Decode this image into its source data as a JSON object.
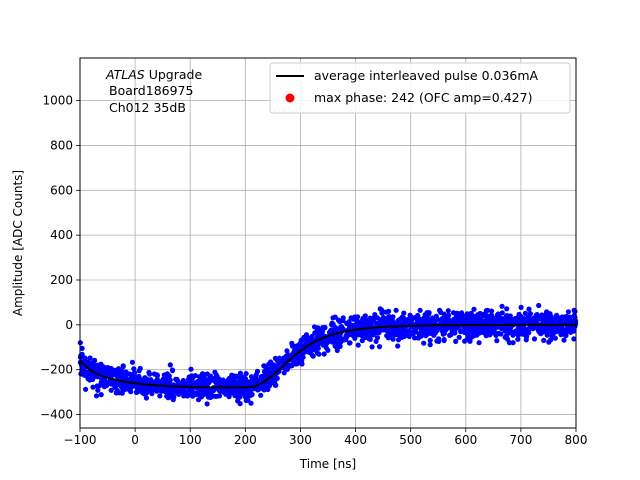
{
  "chart_data": {
    "type": "scatter",
    "xlabel": "Time [ns]",
    "ylabel": "Amplitude [ADC Counts]",
    "xlim": [
      -100,
      800
    ],
    "ylim": [
      -460,
      1190
    ],
    "xticks": [
      -100,
      0,
      100,
      200,
      300,
      400,
      500,
      600,
      700,
      800
    ],
    "yticks": [
      -400,
      -200,
      0,
      200,
      400,
      600,
      800,
      1000
    ],
    "grid": true,
    "legend_position": "top-right",
    "annotation": {
      "line1_italic": "ATLAS",
      "line1_rest": " Upgrade",
      "line2": "Board186975",
      "line3": "Ch012 35dB"
    },
    "series": [
      {
        "name": "average interleaved pulse 0.036mA",
        "kind": "line",
        "color": "#000000",
        "x": [
          -100,
          -80,
          -60,
          -40,
          -20,
          0,
          20,
          40,
          60,
          80,
          100,
          120,
          140,
          160,
          180,
          200,
          215,
          230,
          250,
          270,
          290,
          310,
          330,
          350,
          370,
          390,
          410,
          430,
          450,
          480,
          510,
          550,
          600,
          650,
          700,
          750,
          800
        ],
        "y": [
          -160,
          -205,
          -228,
          -243,
          -253,
          -261,
          -266,
          -270,
          -273,
          -275,
          -277,
          -278,
          -279,
          -279,
          -279,
          -279,
          -276,
          -260,
          -225,
          -180,
          -135,
          -98,
          -70,
          -50,
          -35,
          -25,
          -18,
          -13,
          -9,
          -6,
          -4,
          -2,
          -1,
          -1,
          0,
          0,
          0
        ]
      },
      {
        "name": "",
        "kind": "scatter",
        "color": "#0000ff",
        "spread": 30
      },
      {
        "name": "max phase: 242 (OFC amp=0.427)",
        "kind": "marker",
        "color": "#ff0000"
      }
    ]
  }
}
